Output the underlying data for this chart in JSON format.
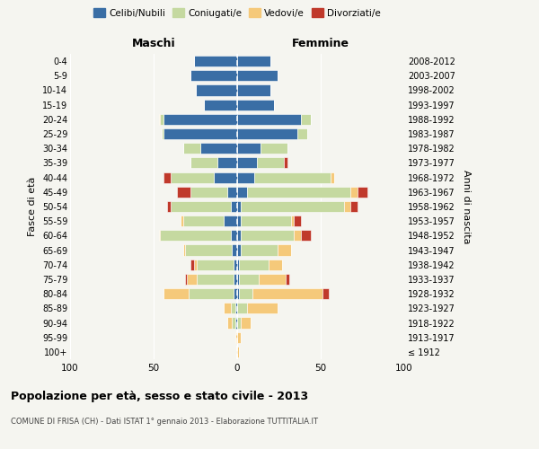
{
  "age_groups": [
    "100+",
    "95-99",
    "90-94",
    "85-89",
    "80-84",
    "75-79",
    "70-74",
    "65-69",
    "60-64",
    "55-59",
    "50-54",
    "45-49",
    "40-44",
    "35-39",
    "30-34",
    "25-29",
    "20-24",
    "15-19",
    "10-14",
    "5-9",
    "0-4"
  ],
  "birth_years": [
    "≤ 1912",
    "1913-1917",
    "1918-1922",
    "1923-1927",
    "1928-1932",
    "1933-1937",
    "1938-1942",
    "1943-1947",
    "1948-1952",
    "1953-1957",
    "1958-1962",
    "1963-1967",
    "1968-1972",
    "1973-1977",
    "1978-1982",
    "1983-1987",
    "1988-1992",
    "1993-1997",
    "1998-2002",
    "2003-2007",
    "2008-2012"
  ],
  "colors": {
    "celibi": "#3A6EA5",
    "coniugati": "#C5D9A0",
    "vedovi": "#F5C97A",
    "divorziati": "#C0392B"
  },
  "maschi": {
    "celibi": [
      0,
      0,
      1,
      1,
      2,
      2,
      2,
      3,
      4,
      8,
      4,
      6,
      14,
      12,
      22,
      44,
      44,
      20,
      25,
      28,
      26
    ],
    "coniugati": [
      0,
      0,
      2,
      3,
      27,
      22,
      22,
      28,
      42,
      24,
      36,
      22,
      26,
      16,
      10,
      1,
      2,
      0,
      0,
      0,
      0
    ],
    "vedovi": [
      0,
      1,
      3,
      4,
      15,
      6,
      2,
      1,
      1,
      2,
      0,
      0,
      0,
      0,
      0,
      0,
      1,
      0,
      0,
      0,
      0
    ],
    "divorziati": [
      0,
      0,
      0,
      0,
      0,
      1,
      2,
      0,
      0,
      0,
      2,
      8,
      4,
      0,
      0,
      0,
      0,
      0,
      0,
      0,
      0
    ]
  },
  "femmine": {
    "celibi": [
      0,
      0,
      0,
      0,
      1,
      1,
      1,
      2,
      2,
      2,
      2,
      6,
      10,
      12,
      14,
      36,
      38,
      22,
      20,
      24,
      20
    ],
    "coniugati": [
      0,
      0,
      2,
      6,
      8,
      12,
      18,
      22,
      32,
      30,
      62,
      62,
      46,
      16,
      16,
      6,
      6,
      0,
      0,
      0,
      0
    ],
    "vedovi": [
      1,
      2,
      6,
      18,
      42,
      16,
      8,
      8,
      4,
      2,
      4,
      4,
      2,
      0,
      0,
      0,
      0,
      0,
      0,
      0,
      0
    ],
    "divorziati": [
      0,
      0,
      0,
      0,
      4,
      2,
      0,
      0,
      6,
      4,
      4,
      6,
      0,
      2,
      0,
      0,
      0,
      0,
      0,
      0,
      0
    ]
  },
  "title": "Popolazione per età, sesso e stato civile - 2013",
  "subtitle": "COMUNE DI FRISA (CH) - Dati ISTAT 1° gennaio 2013 - Elaborazione TUTTITALIA.IT",
  "legend_labels": [
    "Celibi/Nubili",
    "Coniugati/e",
    "Vedovi/e",
    "Divorziati/e"
  ],
  "xlabel_left": "Maschi",
  "xlabel_right": "Femmine",
  "ylabel_left": "Fasce di età",
  "ylabel_right": "Anni di nascita",
  "xlim": 100,
  "bg_color": "#f5f5f0",
  "plot_bg": "#f5f5f0"
}
